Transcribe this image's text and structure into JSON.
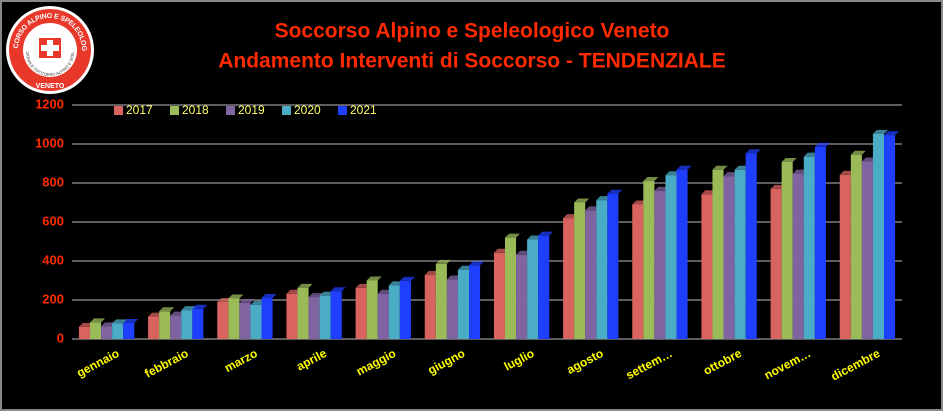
{
  "logo": {
    "ring_text": "SOCCORSO ALPINO E SPELEOLOGICO",
    "inner_text": "CORPO NAZIONALE SOCCORSO ALPINO E SPELEOLOGICO",
    "region": "VENETO"
  },
  "chart_data": {
    "type": "bar",
    "title": "Soccorso Alpino e Speleologico Veneto",
    "subtitle": "Andamento Interventi di Soccorso - TENDENZIALE",
    "categories": [
      "gennaio",
      "febbraio",
      "marzo",
      "aprile",
      "maggio",
      "giugno",
      "luglio",
      "agosto",
      "settem…",
      "ottobre",
      "novem…",
      "dicembre"
    ],
    "series": [
      {
        "name": "2017",
        "color": "#d9635e",
        "values": [
          62,
          115,
          190,
          232,
          262,
          328,
          442,
          620,
          690,
          742,
          770,
          842
        ]
      },
      {
        "name": "2018",
        "color": "#9bbb59",
        "values": [
          85,
          142,
          208,
          262,
          300,
          385,
          520,
          700,
          810,
          868,
          908,
          945
        ]
      },
      {
        "name": "2019",
        "color": "#8064a2",
        "values": [
          65,
          120,
          185,
          215,
          232,
          305,
          432,
          660,
          760,
          835,
          848,
          910
        ]
      },
      {
        "name": "2020",
        "color": "#4bacc6",
        "values": [
          80,
          148,
          175,
          222,
          275,
          355,
          510,
          712,
          840,
          868,
          935,
          1052
        ]
      },
      {
        "name": "2021",
        "color": "#1f3fff",
        "values": [
          82,
          155,
          210,
          245,
          298,
          378,
          530,
          745,
          868,
          952,
          985,
          1045
        ]
      }
    ],
    "ylim": [
      0,
      1200
    ],
    "yticks": [
      0,
      200,
      400,
      600,
      800,
      1000,
      1200
    ],
    "grid": true,
    "legend": "top-left"
  }
}
